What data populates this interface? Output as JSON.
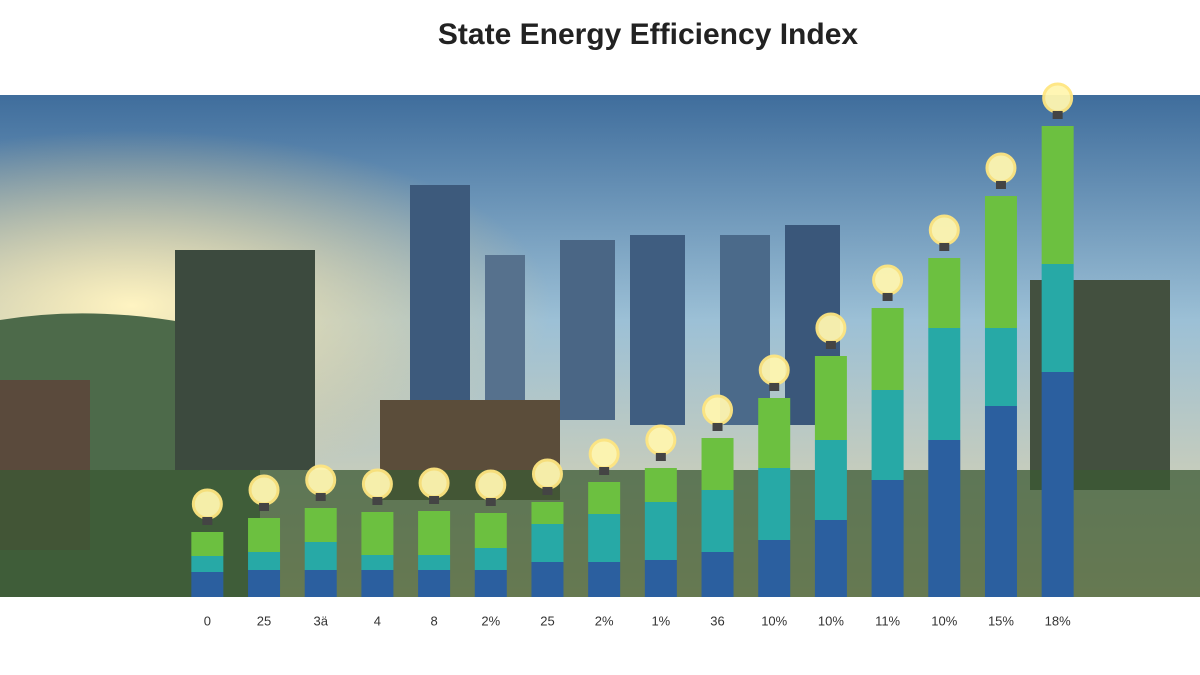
{
  "chart_data": {
    "type": "stacked_bar",
    "title": "State Energy Efficiency Index",
    "categories": [
      "0",
      "25",
      "3ä",
      "4",
      "8",
      "2%",
      "25",
      "2%",
      "1%",
      "36",
      "10%",
      "10%",
      "11%",
      "10%",
      "15%",
      "18%"
    ],
    "series": [
      {
        "color": "#2b5f9f",
        "values": [
          25,
          27,
          27,
          27,
          27,
          27,
          35,
          35,
          37,
          45,
          57,
          77,
          117,
          157,
          191,
          225
        ]
      },
      {
        "color": "#27a9a6",
        "values": [
          16,
          18,
          28,
          15,
          15,
          22,
          38,
          48,
          58,
          62,
          72,
          80,
          90,
          112,
          78,
          108
        ]
      },
      {
        "color": "#6cc040",
        "values": [
          24,
          34,
          34,
          43,
          44,
          35,
          22,
          32,
          34,
          52,
          70,
          84,
          82,
          70,
          132,
          138
        ]
      }
    ],
    "ylim": [
      0,
      480
    ]
  }
}
